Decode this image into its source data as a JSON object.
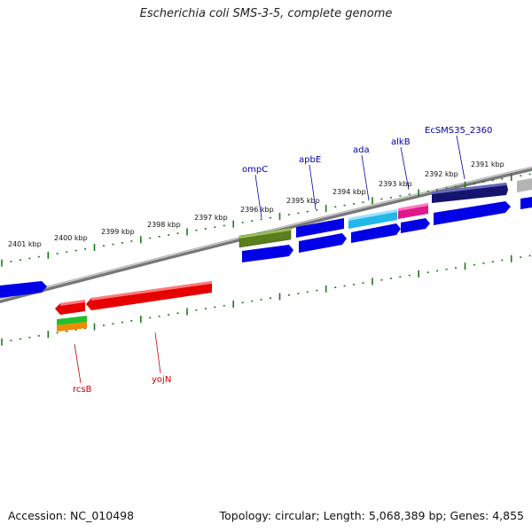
{
  "title": "Escherichia coli SMS-3-5, complete genome",
  "footer": {
    "accession": "Accession: NC_010498",
    "summary": "Topology: circular; Length: 5,068,389 bp; Genes: 4,855"
  },
  "kbp_labels": [
    "2401 kbp",
    "2400 kbp",
    "2399 kbp",
    "2398 kbp",
    "2397 kbp",
    "2396 kbp",
    "2395 kbp",
    "2394 kbp",
    "2393 kbp",
    "2392 kbp",
    "2391 kbp"
  ],
  "gene_labels": {
    "ompC": "ompC",
    "apbE": "apbE",
    "ada": "ada",
    "alkB": "alkB",
    "ecsms": "EcSMS35_2360",
    "rcsB": "rcsB",
    "yojN": "yojN"
  },
  "colors": {
    "blue": "#0000e6",
    "red": "#e60000",
    "olive": "#5a7d1e",
    "cyan": "#22b8e8",
    "magenta": "#e0188c",
    "navy": "#14146e",
    "green": "#22c02c",
    "orange": "#f08a00",
    "label_top": "#0000aa",
    "label_bottom": "#cc0000",
    "tick": "#1a7a1a"
  }
}
